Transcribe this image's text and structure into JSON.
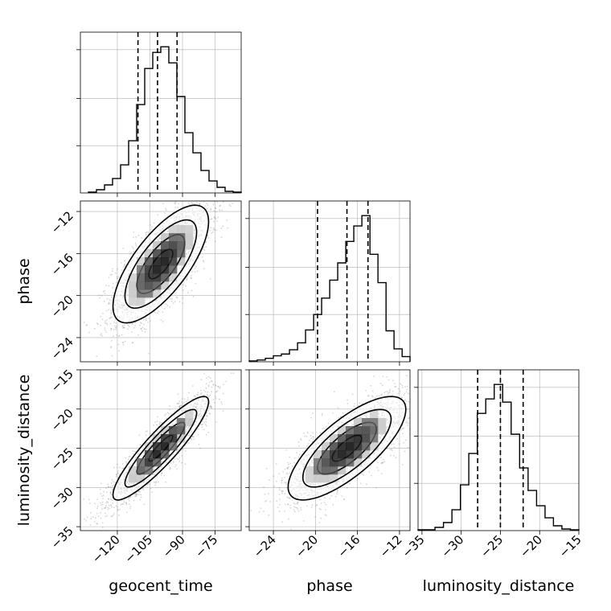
{
  "chart_data": {
    "type": "corner",
    "parameters": [
      "geocent_time",
      "phase",
      "luminosity_distance"
    ],
    "axis_labels": [
      "geocent_time",
      "phase",
      "luminosity_distance"
    ],
    "ranges": {
      "geocent_time": [
        -137,
        -63
      ],
      "phase": [
        -26.3,
        -11.0
      ],
      "luminosity_distance": [
        -35.5,
        -15.0
      ]
    },
    "ticks": {
      "geocent_time": {
        "values": [
          -120,
          -105,
          -90,
          -75
        ],
        "labels": [
          "−120",
          "−105",
          "−90",
          "−75"
        ]
      },
      "phase": {
        "values": [
          -24,
          -20,
          -16,
          -12
        ],
        "labels": [
          "−24",
          "−20",
          "−16",
          "−12"
        ]
      },
      "luminosity_distance": {
        "values": [
          -35,
          -30,
          -25,
          -20,
          -15
        ],
        "labels": [
          "−35",
          "−30",
          "−25",
          "−20",
          "−15"
        ]
      }
    },
    "quantiles": {
      "geocent_time": [
        -110.5,
        -101.5,
        -92.5
      ],
      "phase": [
        -19.8,
        -17.0,
        -15.0
      ],
      "luminosity_distance": [
        -27.9,
        -25.0,
        -22.1
      ]
    },
    "histograms": {
      "geocent_time": {
        "bins": [
          -133.3,
          -129.6,
          -125.9,
          -122.2,
          -118.5,
          -114.8,
          -111.1,
          -107.4,
          -103.7,
          -100.0,
          -96.3,
          -92.6,
          -88.9,
          -85.2,
          -81.5,
          -77.8,
          -74.1,
          -70.4,
          -66.7,
          -63.0
        ],
        "counts": [
          1,
          4,
          10,
          18,
          35,
          65,
          110,
          155,
          175,
          182,
          162,
          120,
          75,
          50,
          28,
          15,
          7,
          2,
          1
        ]
      },
      "phase": {
        "bins": [
          -26.3,
          -25.54,
          -24.77,
          -24.0,
          -23.24,
          -22.47,
          -21.7,
          -20.94,
          -20.17,
          -19.41,
          -18.64,
          -17.88,
          -17.11,
          -16.35,
          -15.58,
          -14.81,
          -14.05,
          -13.28,
          -12.52,
          -11.75,
          -11.0
        ],
        "counts": [
          1,
          2,
          4,
          7,
          9,
          14,
          22,
          37,
          55,
          74,
          95,
          115,
          140,
          158,
          170,
          125,
          92,
          36,
          15,
          6
        ]
      },
      "luminosity_distance": {
        "bins": [
          -35.5,
          -34.42,
          -33.34,
          -32.26,
          -31.18,
          -30.1,
          -29.03,
          -27.95,
          -26.87,
          -25.79,
          -24.71,
          -23.63,
          -22.55,
          -21.47,
          -20.39,
          -19.31,
          -18.24,
          -17.16,
          -16.08,
          -15.0
        ],
        "counts": [
          1,
          1,
          4,
          10,
          26,
          57,
          96,
          146,
          164,
          182,
          160,
          120,
          78,
          50,
          31,
          16,
          6,
          2,
          1
        ]
      }
    },
    "pairs": [
      {
        "x": "geocent_time",
        "y": "phase",
        "mean": [
          -100,
          -17.0
        ],
        "sd": [
          11,
          2.8
        ],
        "corr": 0.72
      },
      {
        "x": "geocent_time",
        "y": "luminosity_distance",
        "mean": [
          -100,
          -25.0
        ],
        "sd": [
          11,
          3.3
        ],
        "corr": 0.9
      },
      {
        "x": "phase",
        "y": "luminosity_distance",
        "mean": [
          -17.0,
          -25.0
        ],
        "sd": [
          2.8,
          3.3
        ],
        "corr": 0.75
      }
    ],
    "contour_levels_sigma": [
      0.5,
      1.0,
      1.5,
      2.0
    ],
    "grid": true,
    "colors": {
      "line": "#000000",
      "points": "#888888",
      "grid": "#b0b0b0"
    }
  }
}
